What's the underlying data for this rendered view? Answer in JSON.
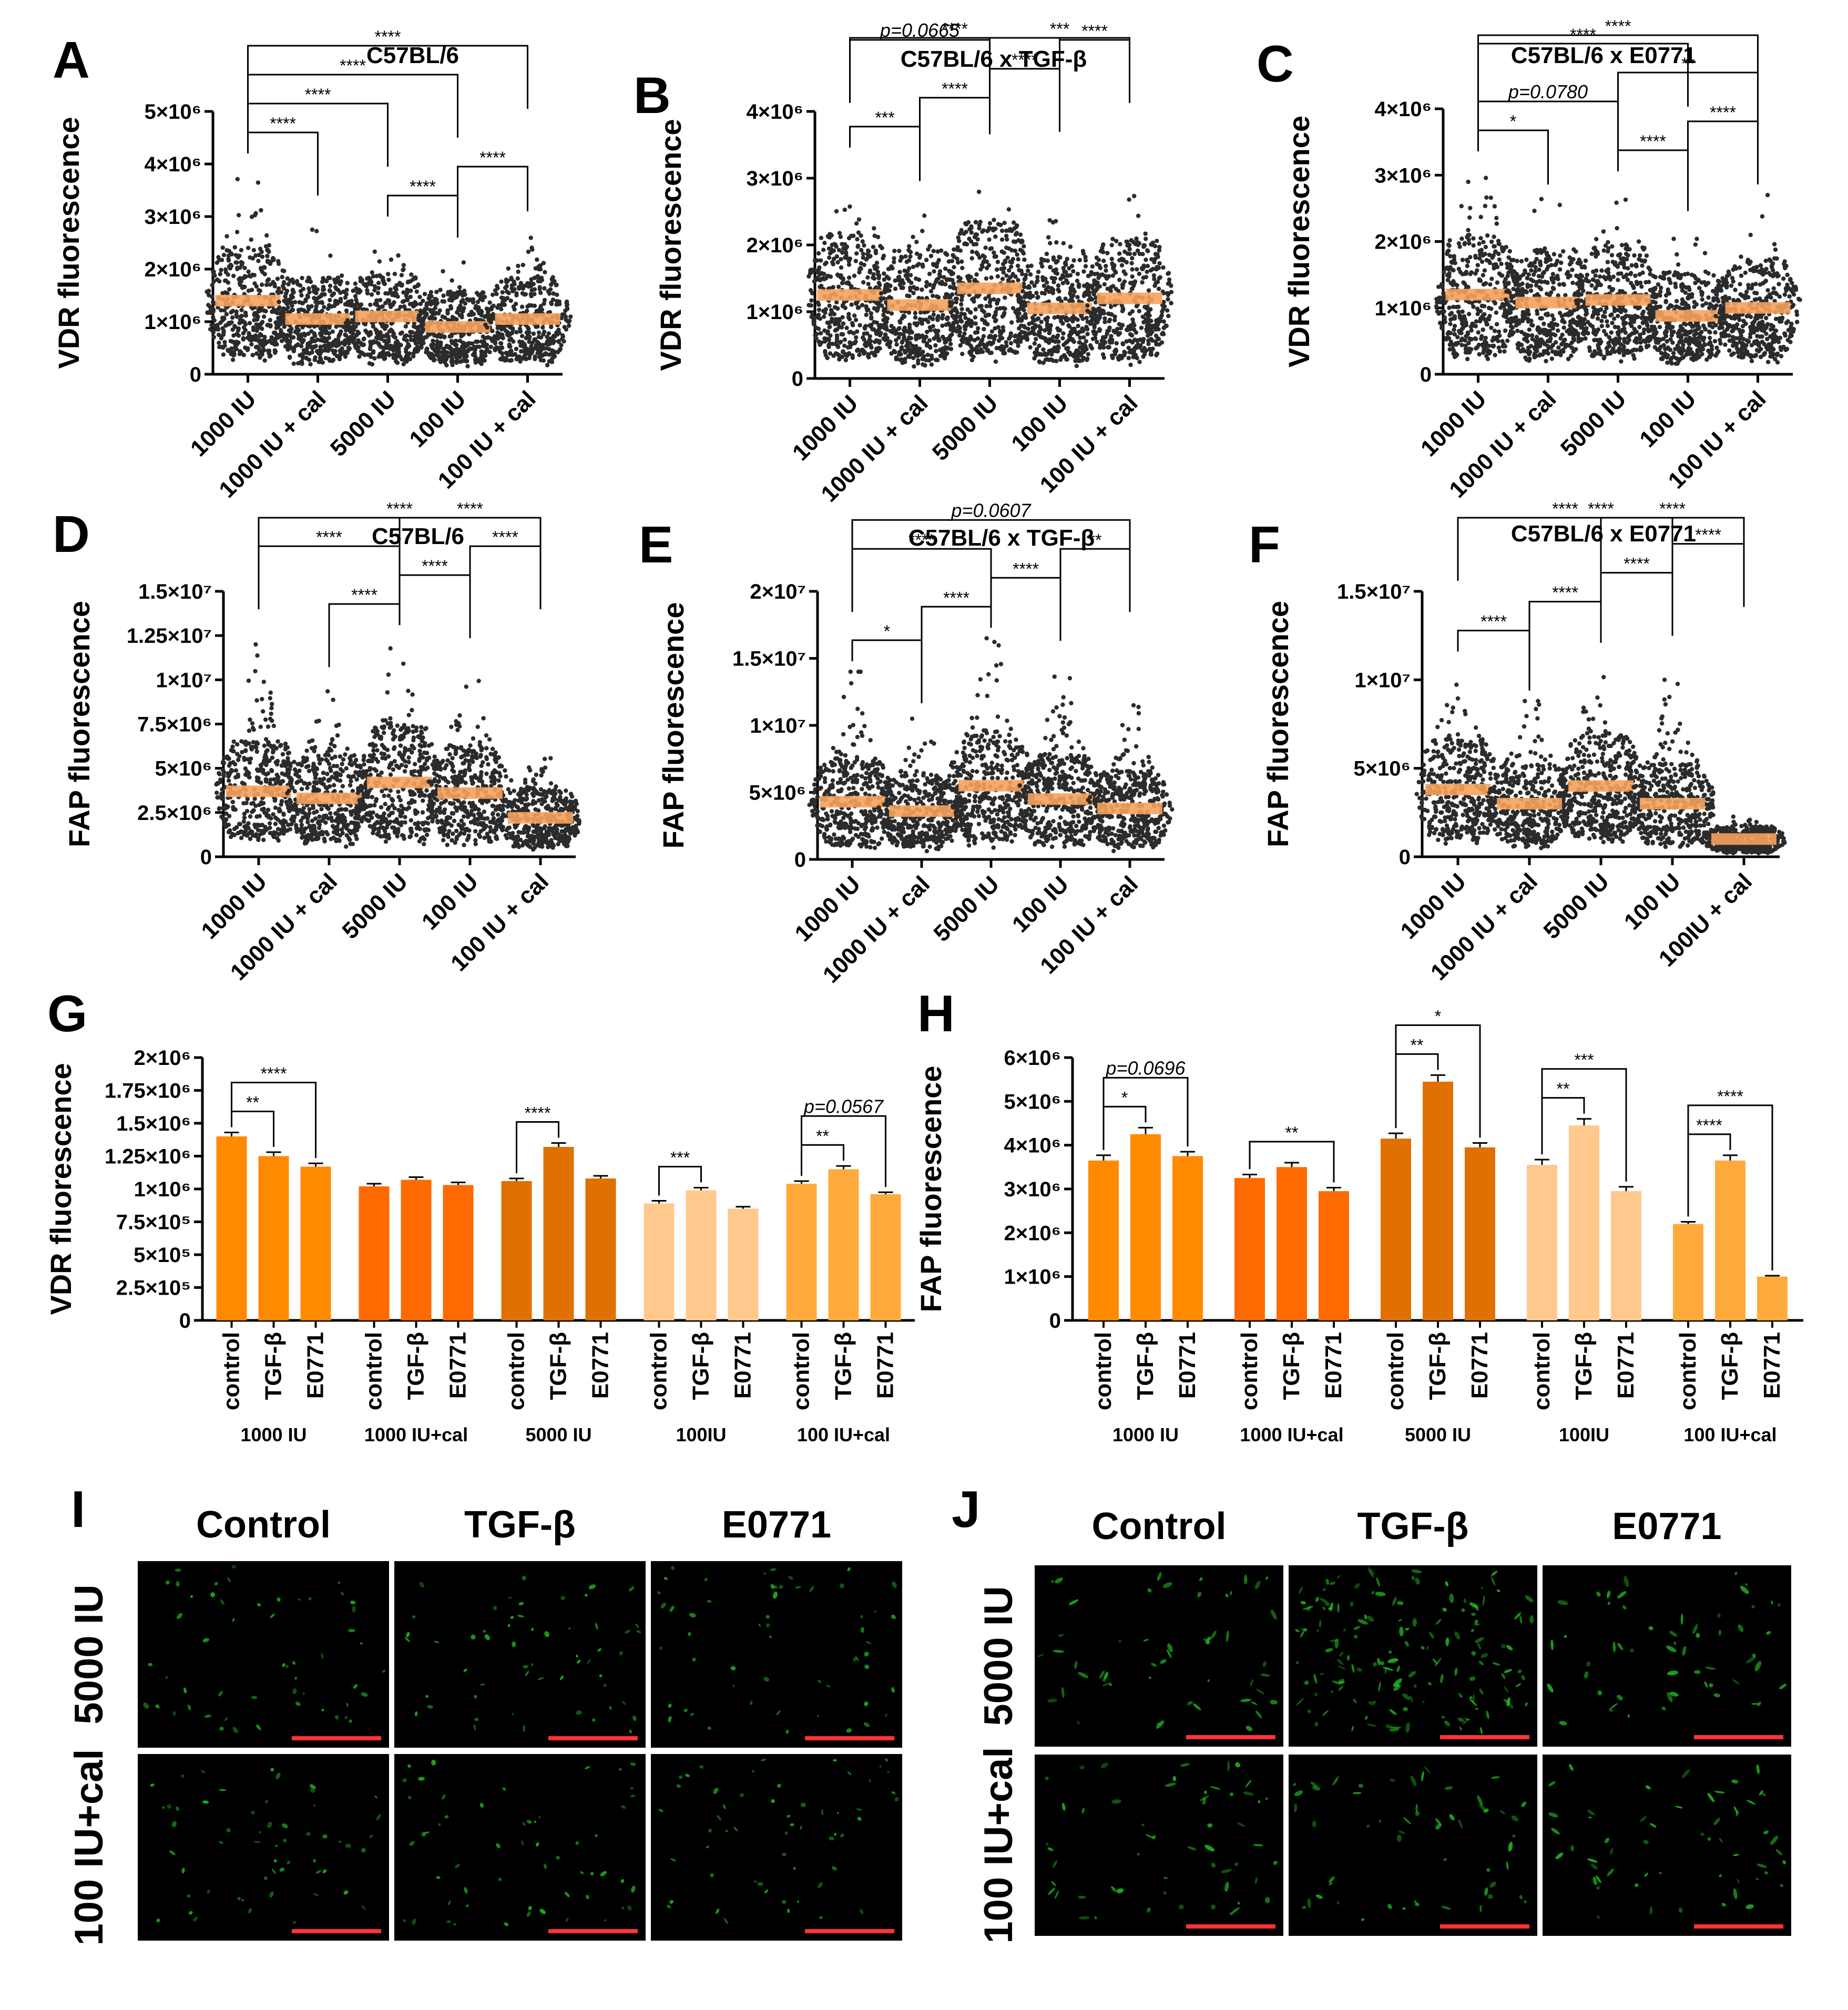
{
  "panels": {
    "A": {
      "letter": "A"
    },
    "B": {
      "letter": "B"
    },
    "C": {
      "letter": "C"
    },
    "D": {
      "letter": "D"
    },
    "E": {
      "letter": "E"
    },
    "F": {
      "letter": "F"
    },
    "G": {
      "letter": "G"
    },
    "H": {
      "letter": "H"
    },
    "I": {
      "letter": "I"
    },
    "J": {
      "letter": "J"
    }
  },
  "colors": {
    "dots": "#2b2b2b",
    "median_bar": "#f5a25d",
    "c1000": "#ff8a00",
    "c1000cal": "#ff6a00",
    "c5000": "#e07000",
    "c100": "#ffc98e",
    "c100cal": "#ffaa3c",
    "micro_bg": "#000000",
    "micro_cells": "#22c022",
    "scalebar": "#ff3333"
  },
  "chart_data": [
    {
      "id": "A",
      "type": "scatter",
      "title": "C57BL/6",
      "ylabel": "VDR fluorescence",
      "categories": [
        "1000 IU",
        "1000 IU + cal",
        "5000 IU",
        "100 IU",
        "100 IU + cal"
      ],
      "ylim": [
        0,
        5000000
      ],
      "yticks": [
        {
          "v": 0,
          "label": "0"
        },
        {
          "v": 1000000,
          "label": "1×10⁶"
        },
        {
          "v": 2000000,
          "label": "2×10⁶"
        },
        {
          "v": 3000000,
          "label": "3×10⁶"
        },
        {
          "v": 4000000,
          "label": "4×10⁶"
        },
        {
          "v": 5000000,
          "label": "5×10⁶"
        }
      ],
      "medians": [
        1400000,
        1050000,
        1100000,
        900000,
        1050000
      ],
      "maxima": [
        4000000,
        2750000,
        2800000,
        2400000,
        2900000
      ],
      "brackets": [
        {
          "i": 0,
          "j": 1,
          "label": "****"
        },
        {
          "i": 0,
          "j": 2,
          "label": "****"
        },
        {
          "i": 0,
          "j": 3,
          "label": "****"
        },
        {
          "i": 0,
          "j": 4,
          "label": "****"
        },
        {
          "i": 2,
          "j": 3,
          "label": "****"
        },
        {
          "i": 3,
          "j": 4,
          "label": "****"
        }
      ]
    },
    {
      "id": "B",
      "type": "scatter",
      "title": "C57BL/6 x TGF-β",
      "ylabel": "VDR fluorescence",
      "categories": [
        "1000 IU",
        "1000 IU + cal",
        "5000 IU",
        "100 IU",
        "100 IU + cal"
      ],
      "ylim": [
        0,
        4000000
      ],
      "yticks": [
        {
          "v": 0,
          "label": "0"
        },
        {
          "v": 1000000,
          "label": "1×10⁶"
        },
        {
          "v": 2000000,
          "label": "2×10⁶"
        },
        {
          "v": 3000000,
          "label": "3×10⁶"
        },
        {
          "v": 4000000,
          "label": "4×10⁶"
        }
      ],
      "medians": [
        1250000,
        1100000,
        1350000,
        1050000,
        1200000
      ],
      "maxima": [
        3300000,
        2800000,
        3500000,
        2700000,
        3100000
      ],
      "brackets": [
        {
          "i": 0,
          "j": 1,
          "label": "***"
        },
        {
          "i": 0,
          "j": 2,
          "label": "p=0.0665",
          "italic": true
        },
        {
          "i": 0,
          "j": 3,
          "label": "****"
        },
        {
          "i": 1,
          "j": 2,
          "label": "****"
        },
        {
          "i": 2,
          "j": 3,
          "label": "****"
        },
        {
          "i": 2,
          "j": 4,
          "label": "***"
        },
        {
          "i": 3,
          "j": 4,
          "label": "****"
        }
      ]
    },
    {
      "id": "C",
      "type": "scatter",
      "title": "C57BL/6 x E0771",
      "ylabel": "VDR fluorescence",
      "categories": [
        "1000 IU",
        "1000 IU + cal",
        "5000 IU",
        "100 IU",
        "100 IU + cal"
      ],
      "ylim": [
        0,
        4000000
      ],
      "yticks": [
        {
          "v": 0,
          "label": "0"
        },
        {
          "v": 1000000,
          "label": "1×10⁶"
        },
        {
          "v": 2000000,
          "label": "2×10⁶"
        },
        {
          "v": 3000000,
          "label": "3×10⁶"
        },
        {
          "v": 4000000,
          "label": "4×10⁶"
        }
      ],
      "medians": [
        1200000,
        1080000,
        1120000,
        880000,
        1000000
      ],
      "maxima": [
        3200000,
        2700000,
        2900000,
        2300000,
        2700000
      ],
      "brackets": [
        {
          "i": 0,
          "j": 1,
          "label": "*"
        },
        {
          "i": 0,
          "j": 2,
          "label": "p=0.0780",
          "italic": true
        },
        {
          "i": 0,
          "j": 3,
          "label": "****"
        },
        {
          "i": 0,
          "j": 4,
          "label": "****"
        },
        {
          "i": 2,
          "j": 3,
          "label": "****"
        },
        {
          "i": 2,
          "j": 4,
          "label": "**"
        },
        {
          "i": 3,
          "j": 4,
          "label": "****"
        }
      ]
    },
    {
      "id": "D",
      "type": "scatter",
      "title": "C57BL/6",
      "ylabel": "FAP fluorescence",
      "categories": [
        "1000 IU",
        "1000 IU + cal",
        "5000 IU",
        "100 IU",
        "100 IU + cal"
      ],
      "ylim": [
        0,
        15000000
      ],
      "yticks": [
        {
          "v": 0,
          "label": "0"
        },
        {
          "v": 2500000,
          "label": "2.5×10⁶"
        },
        {
          "v": 5000000,
          "label": "5×10⁶"
        },
        {
          "v": 7500000,
          "label": "7.5×10⁶"
        },
        {
          "v": 10000000,
          "label": "1×10⁷"
        },
        {
          "v": 12500000,
          "label": "1.25×10⁷"
        },
        {
          "v": 15000000,
          "label": "1.5×10⁷"
        }
      ],
      "medians": [
        3700000,
        3300000,
        4200000,
        3600000,
        2200000
      ],
      "maxima": [
        12000000,
        9800000,
        12500000,
        11000000,
        6800000
      ],
      "brackets": [
        {
          "i": 0,
          "j": 2,
          "label": "****"
        },
        {
          "i": 0,
          "j": 4,
          "label": "****"
        },
        {
          "i": 1,
          "j": 2,
          "label": "****"
        },
        {
          "i": 2,
          "j": 3,
          "label": "****"
        },
        {
          "i": 2,
          "j": 4,
          "label": "****"
        },
        {
          "i": 3,
          "j": 4,
          "label": "****"
        }
      ]
    },
    {
      "id": "E",
      "type": "scatter",
      "title": "C57BL/6 x TGF-β",
      "ylabel": "FAP fluorescence",
      "categories": [
        "1000 IU",
        "1000 IU + cal",
        "5000 IU",
        "100 IU",
        "100 IU + cal"
      ],
      "ylim": [
        0,
        20000000
      ],
      "yticks": [
        {
          "v": 0,
          "label": "0"
        },
        {
          "v": 5000000,
          "label": "5×10⁶"
        },
        {
          "v": 10000000,
          "label": "1×10⁷"
        },
        {
          "v": 15000000,
          "label": "1.5×10⁷"
        },
        {
          "v": 20000000,
          "label": "2×10⁷"
        }
      ],
      "medians": [
        4300000,
        3600000,
        5500000,
        4500000,
        3800000
      ],
      "maxima": [
        14000000,
        10500000,
        16500000,
        14500000,
        11500000
      ],
      "brackets": [
        {
          "i": 0,
          "j": 1,
          "label": "*"
        },
        {
          "i": 0,
          "j": 2,
          "label": "****"
        },
        {
          "i": 0,
          "j": 4,
          "label": "p=0.0607",
          "italic": true
        },
        {
          "i": 1,
          "j": 2,
          "label": "****"
        },
        {
          "i": 2,
          "j": 3,
          "label": "****"
        },
        {
          "i": 3,
          "j": 4,
          "label": "**"
        }
      ]
    },
    {
      "id": "F",
      "type": "scatter",
      "title": "C57BL/6 x E0771",
      "ylabel": "FAP fluorescence",
      "categories": [
        "1000 IU",
        "1000 IU + cal",
        "5000 IU",
        "100 IU",
        "100IU + cal"
      ],
      "ylim": [
        0,
        15000000
      ],
      "yticks": [
        {
          "v": 0,
          "label": "0"
        },
        {
          "v": 5000000,
          "label": "5×10⁶"
        },
        {
          "v": 10000000,
          "label": "1×10⁷"
        },
        {
          "v": 15000000,
          "label": "1.5×10⁷"
        }
      ],
      "medians": [
        3800000,
        3000000,
        4000000,
        3000000,
        1000000
      ],
      "maxima": [
        11000000,
        8800000,
        11500000,
        10000000,
        2700000
      ],
      "brackets": [
        {
          "i": 0,
          "j": 1,
          "label": "****"
        },
        {
          "i": 0,
          "j": 3,
          "label": "****"
        },
        {
          "i": 0,
          "j": 4,
          "label": "****"
        },
        {
          "i": 1,
          "j": 2,
          "label": "****"
        },
        {
          "i": 2,
          "j": 3,
          "label": "****"
        },
        {
          "i": 2,
          "j": 4,
          "label": "****"
        },
        {
          "i": 3,
          "j": 4,
          "label": "****"
        }
      ]
    },
    {
      "id": "G",
      "type": "bar",
      "ylabel": "VDR fluorescence",
      "groups": [
        "1000 IU",
        "1000 IU+cal",
        "5000 IU",
        "100IU",
        "100 IU+cal"
      ],
      "conditions": [
        "control",
        "TGF-β",
        "E0771"
      ],
      "values": [
        [
          1400000,
          1250000,
          1170000
        ],
        [
          1020000,
          1070000,
          1030000
        ],
        [
          1060000,
          1320000,
          1080000
        ],
        [
          890000,
          990000,
          850000
        ],
        [
          1040000,
          1150000,
          960000
        ]
      ],
      "errors": [
        [
          30000,
          30000,
          25000
        ],
        [
          20000,
          20000,
          20000
        ],
        [
          20000,
          30000,
          20000
        ],
        [
          20000,
          20000,
          15000
        ],
        [
          20000,
          25000,
          15000
        ]
      ],
      "ylim": [
        0,
        2000000
      ],
      "yticks": [
        {
          "v": 0,
          "label": "0"
        },
        {
          "v": 250000,
          "label": "2.5×10⁵"
        },
        {
          "v": 500000,
          "label": "5×10⁵"
        },
        {
          "v": 750000,
          "label": "7.5×10⁵"
        },
        {
          "v": 1000000,
          "label": "1×10⁶"
        },
        {
          "v": 1250000,
          "label": "1.25×10⁶"
        },
        {
          "v": 1500000,
          "label": "1.5×10⁶"
        },
        {
          "v": 1750000,
          "label": "1.75×10⁶"
        },
        {
          "v": 2000000,
          "label": "2×10⁶"
        }
      ],
      "brackets": [
        {
          "g": 0,
          "i": 0,
          "j": 1,
          "label": "**"
        },
        {
          "g": 0,
          "i": 0,
          "j": 2,
          "label": "****"
        },
        {
          "g": 2,
          "i": 0,
          "j": 1,
          "label": "****"
        },
        {
          "g": 3,
          "i": 0,
          "j": 1,
          "label": "***"
        },
        {
          "g": 4,
          "i": 0,
          "j": 1,
          "label": "**"
        },
        {
          "g": 4,
          "i": 0,
          "j": 2,
          "label": "p=0.0567",
          "italic": true
        }
      ]
    },
    {
      "id": "H",
      "type": "bar",
      "ylabel": "FAP fluorescence",
      "groups": [
        "1000 IU",
        "1000 IU+cal",
        "5000 IU",
        "100IU",
        "100 IU+cal"
      ],
      "conditions": [
        "control",
        "TGF-β",
        "E0771"
      ],
      "values": [
        [
          3650000,
          4250000,
          3750000
        ],
        [
          3250000,
          3500000,
          2950000
        ],
        [
          4150000,
          5450000,
          3950000
        ],
        [
          3550000,
          4450000,
          2950000
        ],
        [
          2200000,
          3650000,
          1000000
        ]
      ],
      "errors": [
        [
          120000,
          150000,
          100000
        ],
        [
          80000,
          100000,
          80000
        ],
        [
          120000,
          150000,
          100000
        ],
        [
          120000,
          150000,
          100000
        ],
        [
          50000,
          120000,
          20000
        ]
      ],
      "ylim": [
        0,
        6000000
      ],
      "yticks": [
        {
          "v": 0,
          "label": "0"
        },
        {
          "v": 1000000,
          "label": "1×10⁶"
        },
        {
          "v": 2000000,
          "label": "2×10⁶"
        },
        {
          "v": 3000000,
          "label": "3×10⁶"
        },
        {
          "v": 4000000,
          "label": "4×10⁶"
        },
        {
          "v": 5000000,
          "label": "5×10⁶"
        },
        {
          "v": 6000000,
          "label": "6×10⁶"
        }
      ],
      "brackets": [
        {
          "g": 0,
          "i": 0,
          "j": 1,
          "label": "*"
        },
        {
          "g": 0,
          "i": 0,
          "j": 2,
          "label": "p=0.0696",
          "italic": true
        },
        {
          "g": 1,
          "i": 0,
          "j": 2,
          "label": "**"
        },
        {
          "g": 2,
          "i": 0,
          "j": 1,
          "label": "**"
        },
        {
          "g": 2,
          "i": 0,
          "j": 2,
          "label": "*"
        },
        {
          "g": 3,
          "i": 0,
          "j": 1,
          "label": "**"
        },
        {
          "g": 3,
          "i": 0,
          "j": 2,
          "label": "***"
        },
        {
          "g": 4,
          "i": 0,
          "j": 1,
          "label": "****"
        },
        {
          "g": 4,
          "i": 0,
          "j": 2,
          "label": "****"
        }
      ]
    }
  ],
  "micrographs": {
    "I": {
      "columns": [
        "Control",
        "TGF-β",
        "E0771"
      ],
      "rows": [
        "5000 IU",
        "100 IU+cal"
      ]
    },
    "J": {
      "columns": [
        "Control",
        "TGF-β",
        "E0771"
      ],
      "rows": [
        "5000 IU",
        "100 IU+cal"
      ]
    }
  }
}
